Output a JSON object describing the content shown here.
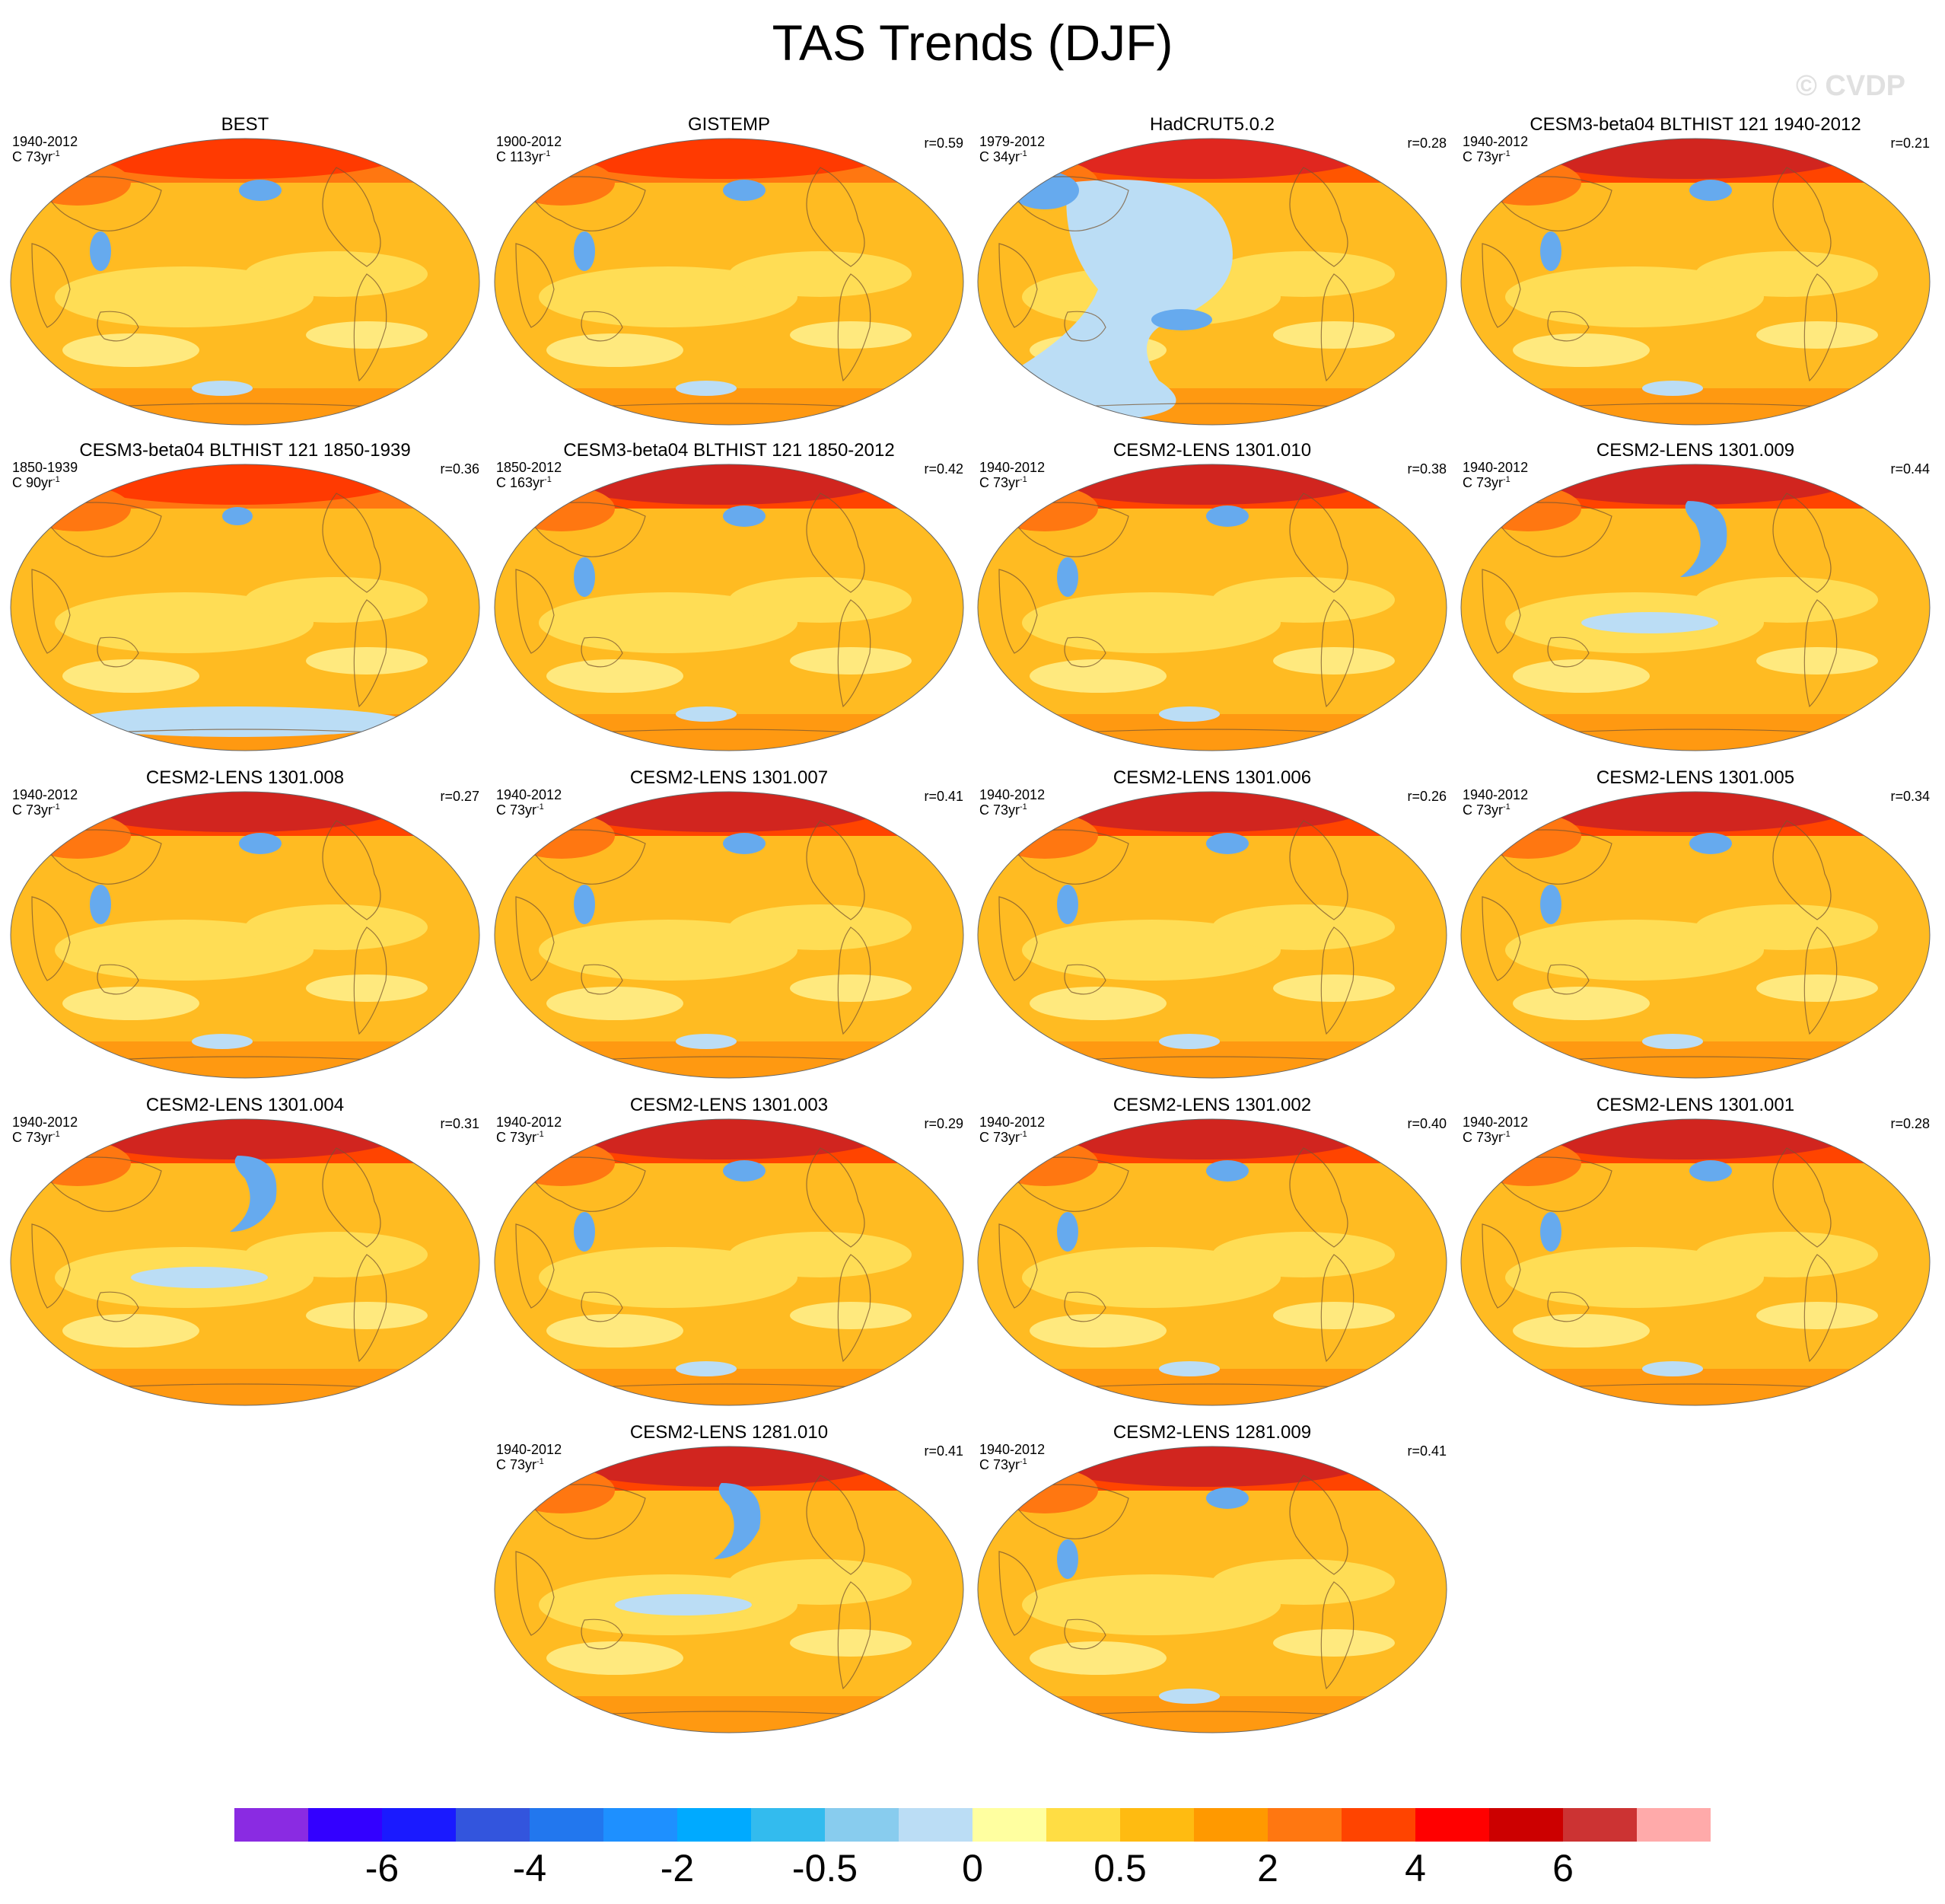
{
  "title": "TAS Trends (DJF)",
  "watermark": "© CVDP",
  "panels": [
    {
      "title": "BEST",
      "years": "1940-2012",
      "stat": "C 73yr",
      "corr": "",
      "pattern": "obs"
    },
    {
      "title": "GISTEMP",
      "years": "1900-2012",
      "stat": "C 113yr",
      "corr": "r=0.59",
      "pattern": "warm"
    },
    {
      "title": "HadCRUT5.0.2",
      "years": "1979-2012",
      "stat": "C 34yr",
      "corr": "r=0.28",
      "pattern": "pacific"
    },
    {
      "title": "CESM3-beta04 BLTHIST 121 1940-2012",
      "years": "1940-2012",
      "stat": "C 73yr",
      "corr": "r=0.21",
      "pattern": "arctic"
    },
    {
      "title": "CESM3-beta04 BLTHIST 121 1850-1939",
      "years": "1850-1939",
      "stat": "C 90yr",
      "corr": "r=0.36",
      "pattern": "mild"
    },
    {
      "title": "CESM3-beta04 BLTHIST 121 1850-2012",
      "years": "1850-2012",
      "stat": "C 163yr",
      "corr": "r=0.42",
      "pattern": "arctic"
    },
    {
      "title": "CESM2-LENS 1301.010",
      "years": "1940-2012",
      "stat": "C 73yr",
      "corr": "r=0.38",
      "pattern": "arctic"
    },
    {
      "title": "CESM2-LENS 1301.009",
      "years": "1940-2012",
      "stat": "C 73yr",
      "corr": "r=0.44",
      "pattern": "blob"
    },
    {
      "title": "CESM2-LENS 1301.008",
      "years": "1940-2012",
      "stat": "C 73yr",
      "corr": "r=0.27",
      "pattern": "arctic"
    },
    {
      "title": "CESM2-LENS 1301.007",
      "years": "1940-2012",
      "stat": "C 73yr",
      "corr": "r=0.41",
      "pattern": "arctic"
    },
    {
      "title": "CESM2-LENS 1301.006",
      "years": "1940-2012",
      "stat": "C 73yr",
      "corr": "r=0.26",
      "pattern": "arctic"
    },
    {
      "title": "CESM2-LENS 1301.005",
      "years": "1940-2012",
      "stat": "C 73yr",
      "corr": "r=0.34",
      "pattern": "arctic"
    },
    {
      "title": "CESM2-LENS 1301.004",
      "years": "1940-2012",
      "stat": "C 73yr",
      "corr": "r=0.31",
      "pattern": "blob"
    },
    {
      "title": "CESM2-LENS 1301.003",
      "years": "1940-2012",
      "stat": "C 73yr",
      "corr": "r=0.29",
      "pattern": "arctic"
    },
    {
      "title": "CESM2-LENS 1301.002",
      "years": "1940-2012",
      "stat": "C 73yr",
      "corr": "r=0.40",
      "pattern": "arctic"
    },
    {
      "title": "CESM2-LENS 1301.001",
      "years": "1940-2012",
      "stat": "C 73yr",
      "corr": "r=0.28",
      "pattern": "arctic"
    },
    {
      "title": "CESM2-LENS 1281.010",
      "years": "1940-2012",
      "stat": "C 73yr",
      "corr": "r=0.41",
      "pattern": "blob"
    },
    {
      "title": "CESM2-LENS 1281.009",
      "years": "1940-2012",
      "stat": "C 73yr",
      "corr": "r=0.41",
      "pattern": "arctic"
    }
  ],
  "stat_superscript": "-1",
  "colorbar": {
    "colors": [
      "#8a2be2",
      "#3300ff",
      "#1a1aff",
      "#3355dd",
      "#2277ee",
      "#1e90ff",
      "#00aaff",
      "#33bbee",
      "#88ccee",
      "#bbddf5",
      "#ffffa0",
      "#ffdd44",
      "#ffbb11",
      "#ff9900",
      "#ff7711",
      "#ff4400",
      "#ff0000",
      "#cc0000",
      "#cc3333",
      "#ffaaaa"
    ],
    "labels": [
      "-6",
      "-4",
      "-2",
      "-0.5",
      "0",
      "0.5",
      "2",
      "4",
      "6"
    ]
  }
}
